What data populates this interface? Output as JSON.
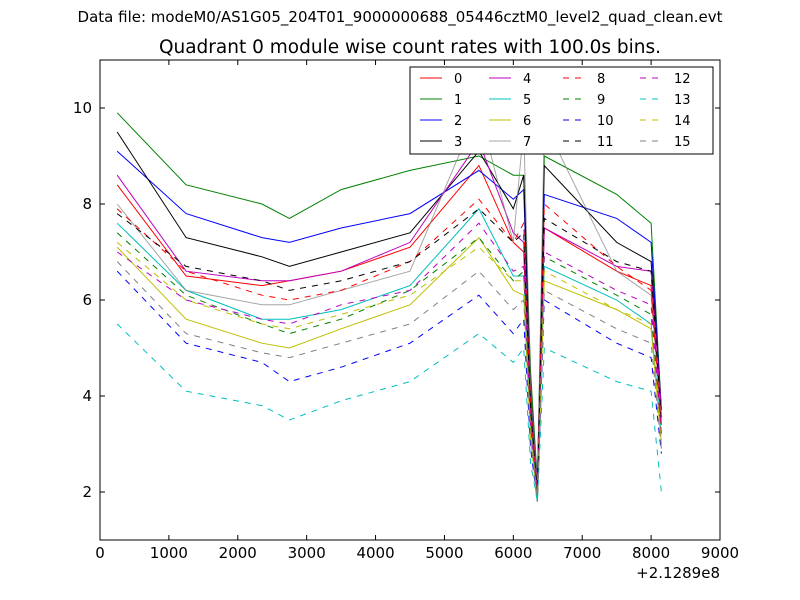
{
  "figure": {
    "supertitle": "Data file: modeM0/AS1G05_204T01_9000000688_05446cztM0_level2_quad_clean.evt"
  },
  "chart_data": {
    "type": "line",
    "title": "Quadrant 0 module wise count rates with 100.0s bins.",
    "xlabel": "",
    "ylabel": "",
    "x_offset_label": "+2.1289e8",
    "xlim": [
      0,
      9000
    ],
    "ylim": [
      1,
      11
    ],
    "xticks": [
      0,
      1000,
      2000,
      3000,
      4000,
      5000,
      6000,
      7000,
      8000,
      9000
    ],
    "yticks": [
      2,
      4,
      6,
      8,
      10
    ],
    "grid": false,
    "legend": {
      "location": "upper right",
      "columns": 4
    },
    "x": [
      250,
      1250,
      2350,
      2750,
      3500,
      4500,
      5500,
      6000,
      6150,
      6250,
      6350,
      6450,
      7500,
      8000,
      8150
    ],
    "series": [
      {
        "name": "0",
        "color": "#ff0000",
        "dash": "solid",
        "values": [
          8.4,
          6.5,
          6.3,
          6.4,
          6.6,
          7.1,
          8.8,
          7.2,
          7.0,
          3.5,
          2.2,
          7.5,
          6.6,
          6.3,
          3.4
        ]
      },
      {
        "name": "1",
        "color": "#008000",
        "dash": "solid",
        "values": [
          9.9,
          8.4,
          8.0,
          7.7,
          8.3,
          8.7,
          9.0,
          8.6,
          8.6,
          4.5,
          2.2,
          9.0,
          8.2,
          7.6,
          3.7
        ]
      },
      {
        "name": "2",
        "color": "#0000ff",
        "dash": "solid",
        "values": [
          9.1,
          7.8,
          7.3,
          7.2,
          7.5,
          7.8,
          8.7,
          8.1,
          8.3,
          4.0,
          2.2,
          8.2,
          7.7,
          7.2,
          3.7
        ]
      },
      {
        "name": "3",
        "color": "#000000",
        "dash": "solid",
        "values": [
          9.5,
          7.3,
          6.9,
          6.7,
          7.0,
          7.4,
          9.1,
          7.9,
          8.6,
          4.2,
          2.1,
          8.8,
          7.2,
          6.8,
          3.7
        ]
      },
      {
        "name": "4",
        "color": "#bf00bf",
        "dash": "solid",
        "values": [
          8.6,
          6.6,
          6.4,
          6.4,
          6.6,
          7.2,
          9.3,
          7.4,
          7.2,
          3.7,
          2.2,
          7.5,
          6.7,
          6.6,
          3.7
        ]
      },
      {
        "name": "5",
        "color": "#00bfbf",
        "dash": "solid",
        "values": [
          7.6,
          6.2,
          5.6,
          5.6,
          5.8,
          6.3,
          7.9,
          6.5,
          6.5,
          3.4,
          1.9,
          6.7,
          6.0,
          5.5,
          3.2
        ]
      },
      {
        "name": "6",
        "color": "#bfbf00",
        "dash": "solid",
        "values": [
          7.1,
          5.6,
          5.1,
          5.0,
          5.4,
          5.9,
          7.3,
          6.2,
          6.1,
          3.1,
          1.8,
          6.4,
          5.8,
          5.4,
          3.0
        ]
      },
      {
        "name": "7",
        "color": "#808080",
        "dash": "solid",
        "opacity": 0.7,
        "values": [
          8.0,
          6.2,
          5.9,
          5.9,
          6.2,
          6.6,
          10.0,
          7.2,
          9.6,
          4.2,
          2.1,
          9.7,
          6.6,
          6.1,
          3.5
        ]
      },
      {
        "name": "8",
        "color": "#ff0000",
        "dash": "dashed",
        "values": [
          7.9,
          6.6,
          6.1,
          6.0,
          6.2,
          6.8,
          8.1,
          7.2,
          7.6,
          3.8,
          2.0,
          8.0,
          6.7,
          6.2,
          3.3
        ]
      },
      {
        "name": "9",
        "color": "#008000",
        "dash": "dashed",
        "values": [
          7.4,
          6.1,
          5.5,
          5.3,
          5.6,
          6.2,
          7.3,
          6.4,
          6.6,
          3.4,
          1.9,
          6.9,
          6.1,
          5.7,
          3.1
        ]
      },
      {
        "name": "10",
        "color": "#0000ff",
        "dash": "dashed",
        "values": [
          6.6,
          5.1,
          4.7,
          4.3,
          4.6,
          5.1,
          6.1,
          5.3,
          5.6,
          2.9,
          1.8,
          6.0,
          5.1,
          4.8,
          2.8
        ]
      },
      {
        "name": "11",
        "color": "#000000",
        "dash": "dashed",
        "values": [
          7.8,
          6.7,
          6.4,
          6.2,
          6.4,
          6.8,
          7.9,
          7.2,
          7.4,
          3.7,
          2.0,
          7.7,
          6.8,
          6.6,
          3.5
        ]
      },
      {
        "name": "12",
        "color": "#bf00bf",
        "dash": "dashed",
        "values": [
          7.0,
          6.0,
          5.6,
          5.5,
          5.9,
          6.2,
          7.6,
          6.6,
          6.7,
          3.4,
          1.9,
          7.0,
          6.2,
          5.9,
          3.2
        ]
      },
      {
        "name": "13",
        "color": "#00bfbf",
        "dash": "dashed",
        "values": [
          5.5,
          4.1,
          3.8,
          3.5,
          3.9,
          4.3,
          5.3,
          4.7,
          5.0,
          2.6,
          1.8,
          5.0,
          4.3,
          4.1,
          2.0
        ]
      },
      {
        "name": "14",
        "color": "#bfbf00",
        "dash": "dashed",
        "values": [
          7.2,
          6.0,
          5.5,
          5.4,
          5.7,
          6.1,
          7.1,
          6.4,
          6.4,
          3.3,
          1.8,
          6.6,
          5.8,
          5.5,
          3.0
        ]
      },
      {
        "name": "15",
        "color": "#808080",
        "dash": "dashed",
        "values": [
          6.8,
          5.3,
          4.9,
          4.8,
          5.1,
          5.5,
          6.6,
          5.8,
          6.0,
          3.1,
          1.8,
          6.2,
          5.4,
          5.1,
          2.9
        ]
      }
    ]
  }
}
